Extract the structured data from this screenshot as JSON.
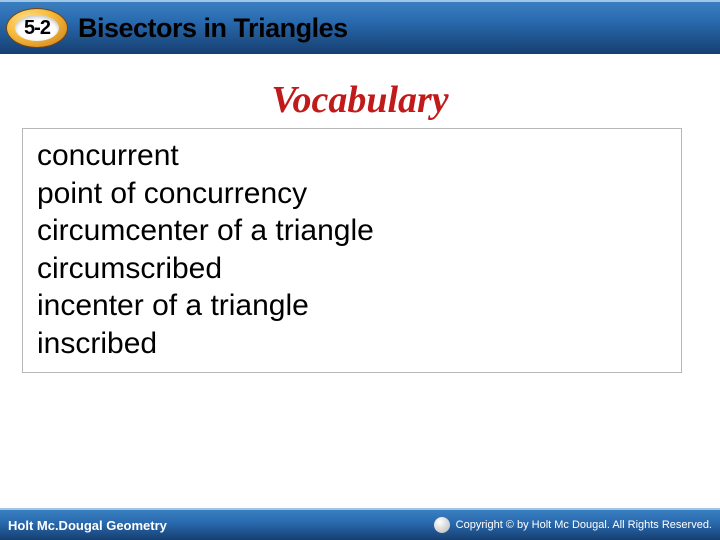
{
  "header": {
    "section_number": "5-2",
    "title": "Bisectors in Triangles",
    "bg_gradient_top": "#3a7fbf",
    "bg_gradient_mid": "#2a6bb0",
    "bg_gradient_bottom": "#163f71",
    "badge_outer_color": "#f5b93a",
    "badge_inner_color": "#ffffff",
    "title_color": "#000000"
  },
  "body": {
    "vocab_title": "Vocabulary",
    "vocab_title_color": "#c11a1a",
    "box_border_color": "#b7b7b7",
    "items": [
      "concurrent",
      "point of concurrency",
      "circumcenter of a triangle",
      "circumscribed",
      "incenter of a triangle",
      "inscribed"
    ]
  },
  "footer": {
    "left": "Holt Mc.Dougal Geometry",
    "right": "Copyright © by Holt Mc Dougal. All Rights Reserved.",
    "text_color": "#ffffff"
  }
}
